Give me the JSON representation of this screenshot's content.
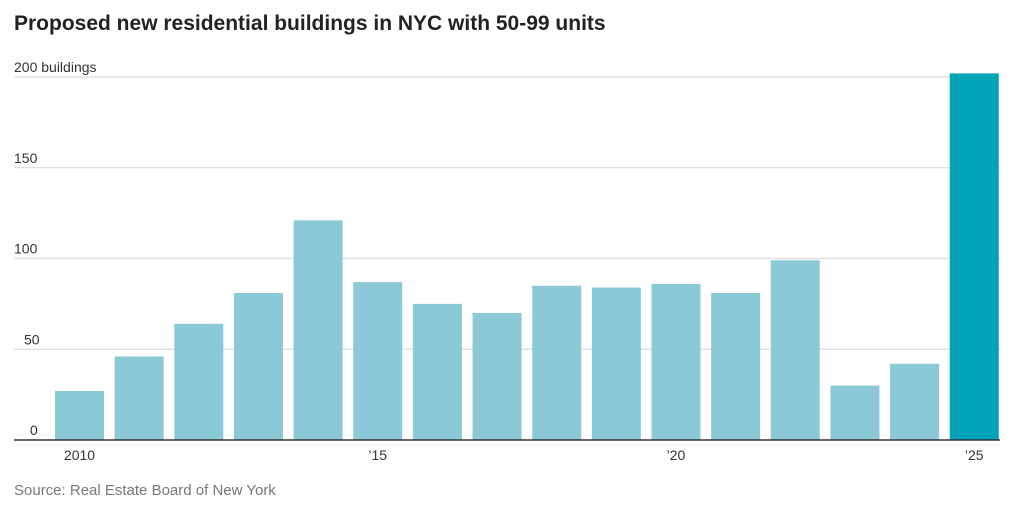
{
  "chart_data": {
    "type": "bar",
    "title": "Proposed new residential buildings in NYC with 50-99 units",
    "categories": [
      "2010",
      "2011",
      "2012",
      "2013",
      "2014",
      "2015",
      "2016",
      "2017",
      "2018",
      "2019",
      "2020",
      "2021",
      "2022",
      "2023",
      "2024",
      "2025"
    ],
    "values": [
      27,
      46,
      64,
      81,
      121,
      87,
      75,
      70,
      85,
      84,
      86,
      81,
      99,
      30,
      42,
      202
    ],
    "x_tick_labels": {
      "2010": "2010",
      "2015": "’15",
      "2020": "’20",
      "2025": "’25"
    },
    "y_ticks": [
      0,
      50,
      100,
      150,
      200
    ],
    "y_tick_labels": [
      "0",
      "50",
      "100",
      "150",
      "200 buildings"
    ],
    "ylim": [
      0,
      200
    ],
    "grid": true,
    "colors": {
      "bar": "#8ac8d6",
      "highlight": "#00a3b8",
      "grid": "#e0e0e0",
      "axis": "#333333"
    },
    "highlight_category": "2025",
    "source": "Source: Real Estate Board of New York"
  }
}
